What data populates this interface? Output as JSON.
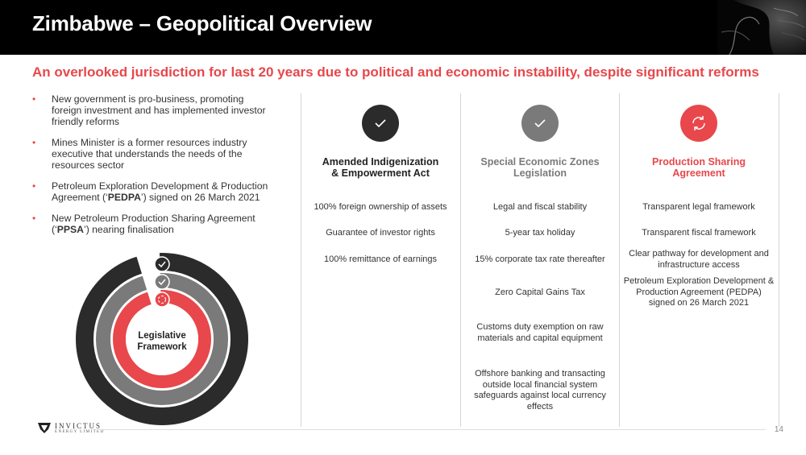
{
  "header": {
    "title": "Zimbabwe – Geopolitical Overview"
  },
  "subtitle": "An overlooked jurisdiction for last 20 years due to political and economic instability, despite significant reforms",
  "bullets": [
    {
      "text": "New government is pro-business, promoting foreign investment and has implemented investor friendly reforms"
    },
    {
      "text": "Mines Minister is a former resources industry executive that understands the needs of the resources sector"
    },
    {
      "pre": "Petroleum Exploration Development & Production Agreement (‘",
      "bold": "PEDPA",
      "post": "’) signed on 26 March 2021"
    },
    {
      "pre": "New Petroleum Production Sharing Agreement (‘",
      "bold": "PPSA",
      "post": "’) nearing finalisation"
    }
  ],
  "colors": {
    "accent": "#e8474b",
    "dark": "#2b2b2b",
    "grey": "#7a7a7a"
  },
  "columns": [
    {
      "icon": "check-icon",
      "title_line1": "Amended Indigenization",
      "title_line2": "& Empowerment Act",
      "items": [
        "100% foreign ownership of assets",
        "Guarantee of investor rights",
        "100% remittance of earnings"
      ]
    },
    {
      "icon": "check-icon",
      "title_line1": "Special Economic Zones",
      "title_line2": "Legislation",
      "items": [
        "Legal and fiscal stability",
        "5-year tax holiday",
        "15% corporate tax rate thereafter",
        "Zero Capital Gains Tax",
        "Customs duty exemption on raw materials and capital equipment",
        "Offshore banking and transacting outside local financial system safeguards against local currency effects"
      ]
    },
    {
      "icon": "cycle-icon",
      "title_line1": "Production Sharing",
      "title_line2": "Agreement",
      "items": [
        "Transparent legal framework",
        "Transparent fiscal framework",
        "Clear pathway for development and infrastructure access",
        "Petroleum Exploration Development & Production Agreement (PEDPA) signed on 26 March 2021"
      ]
    }
  ],
  "legislative": {
    "label_line1": "Legislative",
    "label_line2": "Framework"
  },
  "logo": {
    "name": "INVICTUS",
    "sub": "ENERGY LIMITED"
  },
  "page_number": "14"
}
